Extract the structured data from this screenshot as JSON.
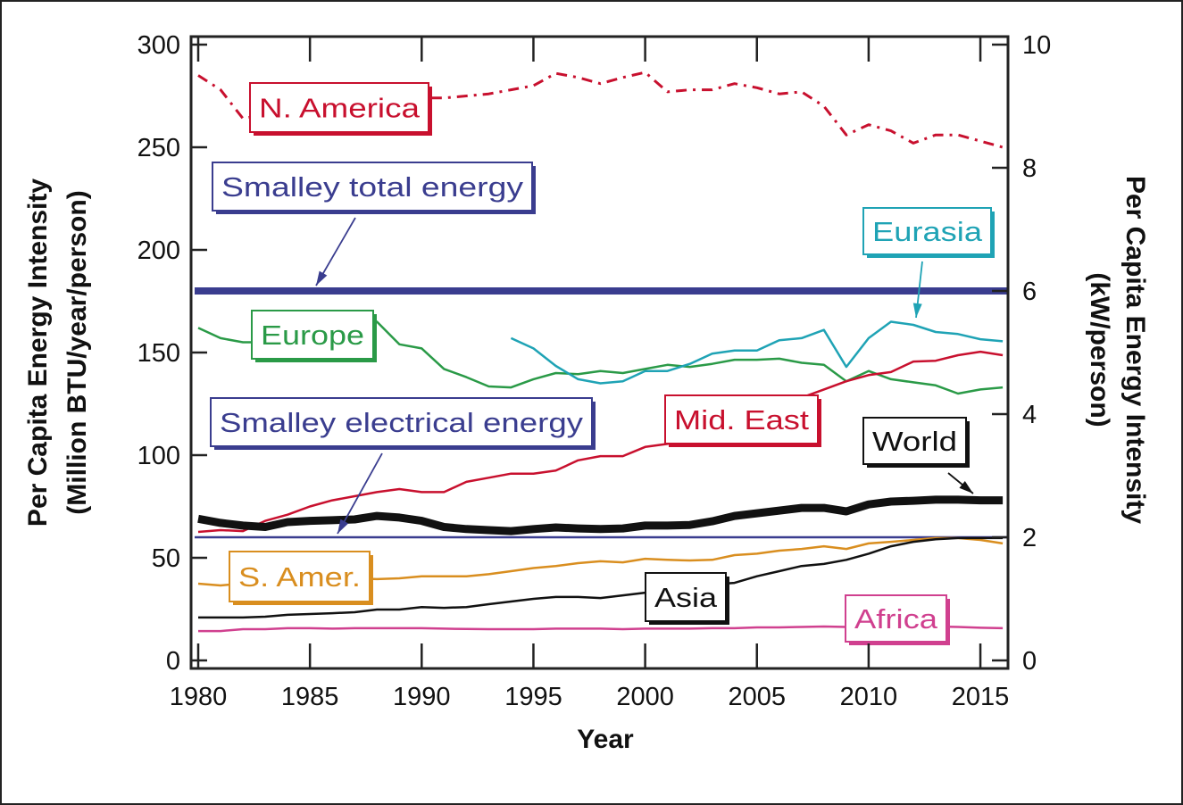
{
  "chart_data": {
    "type": "line",
    "title": "",
    "xlabel": "Year",
    "ylabel": [
      "Per Capita Energy Intensity",
      "(Million BTU/year/person)"
    ],
    "ylabel_right": [
      "Per Capita Energy Intensity",
      "(kW/person)"
    ],
    "xlim": [
      1980,
      2016
    ],
    "ylim": [
      0,
      300
    ],
    "ylim_right": [
      0,
      10
    ],
    "x_ticks": [
      1980,
      1985,
      1990,
      1995,
      2000,
      2005,
      2010,
      2015
    ],
    "y_ticks": [
      0,
      50,
      100,
      150,
      200,
      250,
      300
    ],
    "y_ticks_right": [
      0,
      2,
      4,
      6,
      8,
      10
    ],
    "grid": false,
    "legend": "inline labels",
    "years": [
      1980,
      1981,
      1982,
      1983,
      1984,
      1985,
      1986,
      1987,
      1988,
      1989,
      1990,
      1991,
      1992,
      1993,
      1994,
      1995,
      1996,
      1997,
      1998,
      1999,
      2000,
      2001,
      2002,
      2003,
      2004,
      2005,
      2006,
      2007,
      2008,
      2009,
      2010,
      2011,
      2012,
      2013,
      2014,
      2015,
      2016
    ],
    "series": [
      {
        "name": "N. America",
        "color": "#c8102e",
        "style": "dash-dot",
        "values": [
          285,
          278,
          264,
          266,
          270,
          272,
          275,
          276,
          276,
          270,
          274,
          274,
          275,
          276,
          278,
          280,
          286,
          284,
          281,
          284,
          286.5,
          277,
          278,
          278,
          281,
          279,
          276,
          277,
          270,
          256,
          261,
          258,
          252,
          256,
          256,
          253,
          250
        ]
      },
      {
        "name": "Europe",
        "color": "#2a9a47",
        "style": "solid",
        "values": [
          162,
          157,
          155,
          155,
          155,
          156,
          158,
          162,
          165,
          154,
          152,
          142,
          138,
          133.5,
          133,
          137,
          140,
          139.5,
          141,
          140,
          142,
          144,
          143,
          144.5,
          146.5,
          146.5,
          147,
          145,
          144,
          136,
          141,
          137,
          135.5,
          134,
          130,
          132,
          133
        ]
      },
      {
        "name": "Eurasia",
        "color": "#1fa3b5",
        "style": "solid",
        "values": [
          null,
          null,
          null,
          null,
          null,
          null,
          null,
          null,
          null,
          null,
          null,
          null,
          null,
          null,
          157,
          152,
          143.5,
          137,
          135,
          136,
          141,
          141,
          144.5,
          149.5,
          151,
          151,
          156,
          157,
          161,
          143,
          157,
          165,
          163.5,
          160,
          159,
          156.5,
          155.5
        ]
      },
      {
        "name": "Mid. East",
        "color": "#c8102e",
        "style": "solid",
        "values": [
          62.6,
          63.5,
          63,
          68,
          71,
          75,
          78,
          80,
          82,
          83.5,
          82,
          82,
          87,
          89,
          91,
          91,
          92.5,
          97.5,
          99.5,
          99.5,
          104,
          105.5,
          108,
          112,
          116,
          120,
          124,
          128,
          132,
          136,
          139,
          140.5,
          145.6,
          146,
          148.7,
          150.4,
          148.7
        ]
      },
      {
        "name": "World",
        "color": "#111111",
        "style": "bold",
        "values": [
          69,
          67,
          65.7,
          65,
          67.4,
          68,
          68.3,
          68.7,
          70.4,
          69.6,
          68,
          65,
          64,
          63.5,
          63,
          64,
          64.8,
          64.3,
          64,
          64.3,
          65.7,
          65.7,
          66,
          67.8,
          70.4,
          71.7,
          73,
          74.3,
          74.3,
          72.6,
          76,
          77.4,
          77.8,
          78.3,
          78.3,
          78,
          78
        ]
      },
      {
        "name": "S. Amer.",
        "color": "#d98e1f",
        "style": "solid",
        "values": [
          37.4,
          36.5,
          37.5,
          38,
          38.5,
          39,
          39.5,
          40,
          39.6,
          40,
          41,
          41,
          41,
          42,
          43.5,
          45,
          46,
          47.4,
          48.3,
          47.8,
          49.5,
          49,
          48.7,
          49,
          51.3,
          52,
          53.5,
          54.3,
          55.6,
          54.3,
          57,
          57.8,
          58.7,
          59.6,
          59.6,
          58.7,
          57
        ]
      },
      {
        "name": "Asia",
        "color": "#111111",
        "style": "solid",
        "values": [
          20.9,
          20.9,
          20.9,
          21.3,
          22.2,
          22.6,
          23,
          23.5,
          24.8,
          24.8,
          26,
          25.6,
          26,
          27.4,
          28.7,
          30,
          30.9,
          30.9,
          30.4,
          31.7,
          33,
          34,
          35,
          37,
          37.8,
          41,
          43.5,
          46,
          47,
          49,
          52,
          55.6,
          57.8,
          59,
          59.6,
          59.6,
          59.6
        ]
      },
      {
        "name": "Africa",
        "color": "#d0408f",
        "style": "solid",
        "values": [
          14.3,
          14.3,
          15.2,
          15.2,
          15.7,
          15.7,
          15.5,
          15.7,
          15.7,
          15.7,
          15.7,
          15.5,
          15.3,
          15.2,
          15.2,
          15.2,
          15.5,
          15.5,
          15.5,
          15.2,
          15.5,
          15.5,
          15.5,
          15.7,
          15.7,
          16.1,
          16.1,
          16.3,
          16.5,
          16.3,
          16.5,
          16.5,
          16.5,
          16.5,
          16.3,
          15.9,
          15.7
        ]
      }
    ],
    "reference_lines": [
      {
        "name": "Smalley total energy",
        "value": 180,
        "color": "#3a3d8f"
      },
      {
        "name": "Smalley electrical energy",
        "value": 60,
        "color": "#3a3d8f"
      }
    ]
  }
}
